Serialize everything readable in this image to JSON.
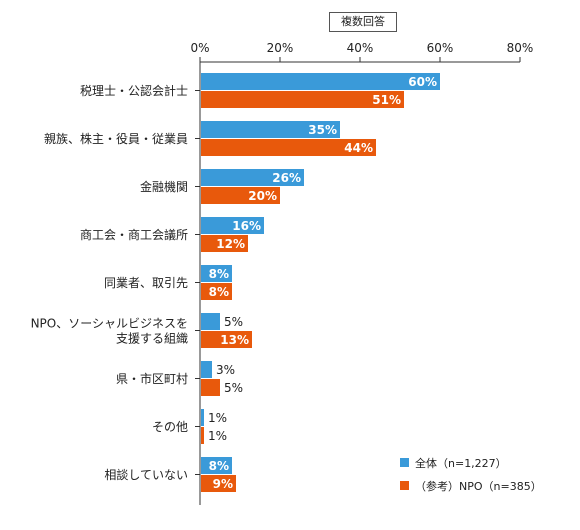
{
  "chart_data": {
    "type": "bar",
    "orientation": "horizontal",
    "note": "複数回答",
    "categories": [
      [
        "税理士・公認会計士"
      ],
      [
        "親族、株主・役員・従業員"
      ],
      [
        "金融機関"
      ],
      [
        "商工会・商工会議所"
      ],
      [
        "同業者、取引先"
      ],
      [
        "NPO、ソーシャルビジネスを",
        "支援する組織"
      ],
      [
        "県・市区町村"
      ],
      [
        "その他"
      ],
      [
        "相談していない"
      ]
    ],
    "series": [
      {
        "name": "全体（n=1,227）",
        "color": "#3a9ad9",
        "values": [
          60,
          35,
          26,
          16,
          8,
          5,
          3,
          1,
          8
        ]
      },
      {
        "name": "（参考）NPO（n=385）",
        "color": "#e8590c",
        "values": [
          51,
          44,
          20,
          12,
          8,
          13,
          5,
          1,
          9
        ]
      }
    ],
    "value_suffix": "%",
    "xlim": [
      0,
      80
    ],
    "xticks": [
      "0%",
      "20%",
      "40%",
      "60%",
      "80%"
    ],
    "legend_position": "bottom-right",
    "grid": false
  }
}
